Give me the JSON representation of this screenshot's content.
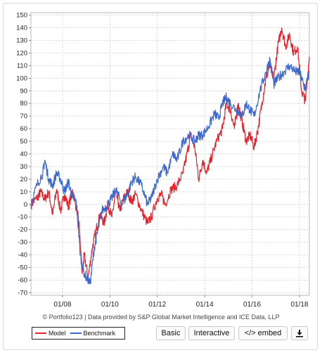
{
  "footer": {
    "credit": "© Portfolio123 | Data provided by S&P Global Market Intelligence and ICE Data, LLP",
    "legend": [
      {
        "label": "Model",
        "color": "#e8202a"
      },
      {
        "label": "Benchmark",
        "color": "#3b67d0"
      }
    ],
    "buttons": {
      "basic": "Basic",
      "interactive": "Interactive",
      "embed": "</> embed",
      "download_icon": "download-icon"
    }
  },
  "chart_data": {
    "type": "line",
    "grid": true,
    "legend_placement": "bottom-left",
    "x_ticks": [
      "01/08",
      "01/10",
      "01/12",
      "01/14",
      "01/16",
      "01/18"
    ],
    "x_range": [
      "2006-09",
      "2018-06"
    ],
    "ylim": [
      -72,
      152
    ],
    "y_ticks": [
      -70,
      -60,
      -50,
      -40,
      -30,
      -20,
      -10,
      0,
      10,
      20,
      30,
      40,
      50,
      60,
      70,
      80,
      90,
      100,
      110,
      120,
      130,
      140,
      150
    ],
    "series": [
      {
        "name": "Model",
        "color": "#e8202a",
        "points": [
          [
            "2006-09",
            0
          ],
          [
            "2006-12",
            5
          ],
          [
            "2007-02",
            10
          ],
          [
            "2007-04",
            4
          ],
          [
            "2007-06",
            10
          ],
          [
            "2007-08",
            -8
          ],
          [
            "2007-10",
            12
          ],
          [
            "2007-12",
            -5
          ],
          [
            "2008-02",
            8
          ],
          [
            "2008-04",
            -2
          ],
          [
            "2008-06",
            12
          ],
          [
            "2008-09",
            -10
          ],
          [
            "2008-11",
            -55
          ],
          [
            "2008-12",
            -40
          ],
          [
            "2009-02",
            -58
          ],
          [
            "2009-04",
            -35
          ],
          [
            "2009-06",
            -20
          ],
          [
            "2009-08",
            -8
          ],
          [
            "2009-10",
            -15
          ],
          [
            "2009-12",
            0
          ],
          [
            "2010-02",
            -10
          ],
          [
            "2010-04",
            10
          ],
          [
            "2010-06",
            -5
          ],
          [
            "2010-08",
            5
          ],
          [
            "2010-10",
            10
          ],
          [
            "2010-12",
            2
          ],
          [
            "2011-02",
            8
          ],
          [
            "2011-05",
            -5
          ],
          [
            "2011-08",
            -15
          ],
          [
            "2011-10",
            -10
          ],
          [
            "2012-01",
            5
          ],
          [
            "2012-03",
            8
          ],
          [
            "2012-05",
            0
          ],
          [
            "2012-08",
            12
          ],
          [
            "2012-11",
            15
          ],
          [
            "2013-02",
            25
          ],
          [
            "2013-04",
            40
          ],
          [
            "2013-06",
            55
          ],
          [
            "2013-08",
            45
          ],
          [
            "2013-10",
            20
          ],
          [
            "2013-12",
            35
          ],
          [
            "2014-02",
            25
          ],
          [
            "2014-04",
            35
          ],
          [
            "2014-07",
            50
          ],
          [
            "2014-10",
            60
          ],
          [
            "2014-12",
            80
          ],
          [
            "2015-02",
            75
          ],
          [
            "2015-04",
            60
          ],
          [
            "2015-06",
            80
          ],
          [
            "2015-08",
            65
          ],
          [
            "2015-10",
            50
          ],
          [
            "2015-12",
            55
          ],
          [
            "2016-02",
            45
          ],
          [
            "2016-04",
            60
          ],
          [
            "2016-06",
            80
          ],
          [
            "2016-08",
            100
          ],
          [
            "2016-10",
            110
          ],
          [
            "2016-12",
            100
          ],
          [
            "2017-02",
            125
          ],
          [
            "2017-04",
            140
          ],
          [
            "2017-06",
            125
          ],
          [
            "2017-08",
            135
          ],
          [
            "2017-10",
            120
          ],
          [
            "2017-12",
            125
          ],
          [
            "2018-02",
            90
          ],
          [
            "2018-04",
            82
          ],
          [
            "2018-06",
            117
          ]
        ]
      },
      {
        "name": "Benchmark",
        "color": "#3b67d0",
        "points": [
          [
            "2006-09",
            0
          ],
          [
            "2006-12",
            15
          ],
          [
            "2007-03",
            25
          ],
          [
            "2007-04",
            35
          ],
          [
            "2007-06",
            20
          ],
          [
            "2007-08",
            15
          ],
          [
            "2007-10",
            25
          ],
          [
            "2007-12",
            20
          ],
          [
            "2008-02",
            10
          ],
          [
            "2008-04",
            18
          ],
          [
            "2008-06",
            5
          ],
          [
            "2008-08",
            2
          ],
          [
            "2008-10",
            -40
          ],
          [
            "2008-12",
            -55
          ],
          [
            "2009-03",
            -63
          ],
          [
            "2009-05",
            -35
          ],
          [
            "2009-07",
            -20
          ],
          [
            "2009-09",
            -5
          ],
          [
            "2009-12",
            0
          ],
          [
            "2010-02",
            5
          ],
          [
            "2010-04",
            12
          ],
          [
            "2010-07",
            0
          ],
          [
            "2010-10",
            8
          ],
          [
            "2010-12",
            18
          ],
          [
            "2011-02",
            22
          ],
          [
            "2011-05",
            15
          ],
          [
            "2011-08",
            0
          ],
          [
            "2011-10",
            5
          ],
          [
            "2012-01",
            20
          ],
          [
            "2012-04",
            30
          ],
          [
            "2012-06",
            25
          ],
          [
            "2012-09",
            40
          ],
          [
            "2012-11",
            35
          ],
          [
            "2013-02",
            50
          ],
          [
            "2013-05",
            55
          ],
          [
            "2013-08",
            50
          ],
          [
            "2013-10",
            55
          ],
          [
            "2013-12",
            55
          ],
          [
            "2014-03",
            62
          ],
          [
            "2014-06",
            72
          ],
          [
            "2014-08",
            68
          ],
          [
            "2014-10",
            80
          ],
          [
            "2014-12",
            85
          ],
          [
            "2015-02",
            80
          ],
          [
            "2015-05",
            75
          ],
          [
            "2015-08",
            70
          ],
          [
            "2015-10",
            80
          ],
          [
            "2015-12",
            75
          ],
          [
            "2016-02",
            70
          ],
          [
            "2016-05",
            90
          ],
          [
            "2016-08",
            105
          ],
          [
            "2016-10",
            115
          ],
          [
            "2016-12",
            95
          ],
          [
            "2017-02",
            100
          ],
          [
            "2017-05",
            105
          ],
          [
            "2017-08",
            110
          ],
          [
            "2017-11",
            105
          ],
          [
            "2018-01",
            105
          ],
          [
            "2018-03",
            95
          ],
          [
            "2018-04",
            92
          ],
          [
            "2018-06",
            105
          ]
        ]
      }
    ]
  }
}
